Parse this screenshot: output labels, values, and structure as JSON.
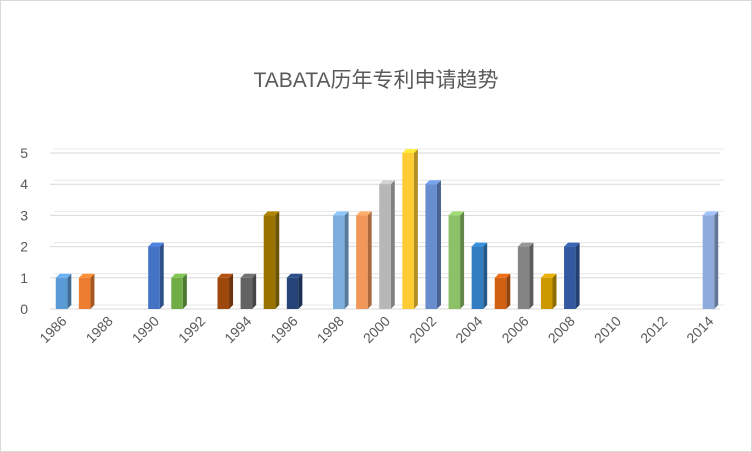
{
  "chart_data": {
    "type": "bar",
    "title": "TABATA历年专利申请趋势",
    "categories": [
      "1986",
      "1987",
      "1988",
      "1989",
      "1990",
      "1991",
      "1992",
      "1993",
      "1994",
      "1995",
      "1996",
      "1997",
      "1998",
      "1999",
      "2000",
      "2001",
      "2002",
      "2003",
      "2004",
      "2005",
      "2006",
      "2007",
      "2008",
      "2009",
      "2010",
      "2011",
      "2012",
      "2013",
      "2014"
    ],
    "x_tick_labels": [
      "1986",
      "1988",
      "1990",
      "1992",
      "1994",
      "1996",
      "1998",
      "2000",
      "2002",
      "2004",
      "2006",
      "2008",
      "2010",
      "2012",
      "2014"
    ],
    "values": [
      1,
      1,
      0,
      0,
      2,
      1,
      0,
      1,
      1,
      3,
      1,
      0,
      3,
      3,
      4,
      5,
      4,
      3,
      2,
      1,
      2,
      1,
      2,
      0,
      0,
      0,
      0,
      0,
      3
    ],
    "colors": [
      "#5b9bd5",
      "#ed7d31",
      "#a5a5a5",
      "#ffc000",
      "#4472c4",
      "#70ad47",
      "#255e91",
      "#9e480e",
      "#636363",
      "#997300",
      "#264478",
      "#43682b",
      "#7cafdd",
      "#f1975a",
      "#b7b7b7",
      "#ffcd33",
      "#698ed0",
      "#8cc168",
      "#327dc2",
      "#d26012",
      "#848484",
      "#cc9a00",
      "#335aa1",
      "#5a8a39",
      "#9dc3e6",
      "#f4b183",
      "#c9c9c9",
      "#ffd966",
      "#8faadc"
    ],
    "ylim": [
      0,
      5
    ],
    "yticks": [
      0,
      1,
      2,
      3,
      4,
      5
    ],
    "grid": true,
    "legend": "none"
  }
}
